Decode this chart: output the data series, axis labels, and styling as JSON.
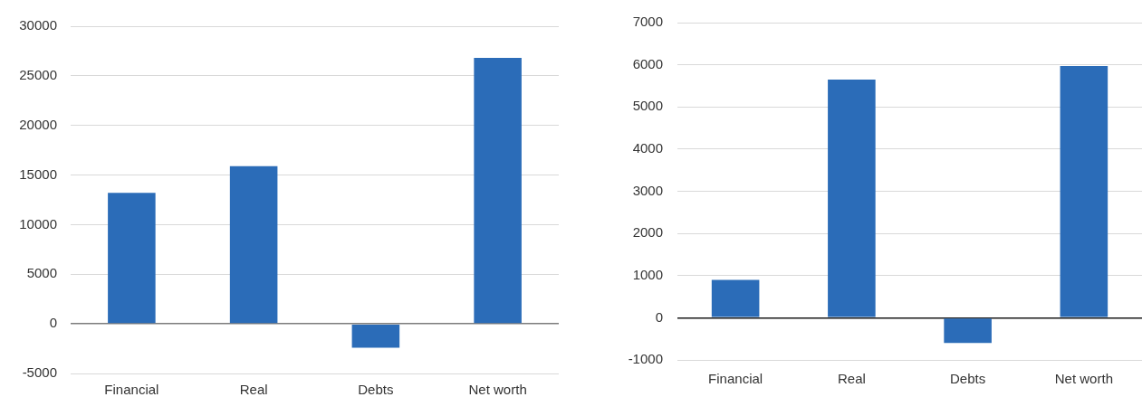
{
  "chart_data": [
    {
      "type": "bar",
      "categories": [
        "Financial",
        "Real",
        "Debts",
        "Net worth"
      ],
      "values": [
        13200,
        15900,
        -2400,
        26800
      ],
      "color": "#2b6cb8",
      "ylim": [
        -5000,
        30000
      ],
      "yticks": [
        -5000,
        0,
        5000,
        10000,
        15000,
        20000,
        25000,
        30000
      ],
      "grid": "y"
    },
    {
      "type": "bar",
      "categories": [
        "Financial",
        "Real",
        "Debts",
        "Net worth"
      ],
      "values": [
        900,
        5650,
        -600,
        5970
      ],
      "color": "#2b6cb8",
      "ylim": [
        -1000,
        7000
      ],
      "yticks": [
        -1000,
        0,
        1000,
        2000,
        3000,
        4000,
        5000,
        6000,
        7000
      ],
      "grid": "y"
    }
  ]
}
